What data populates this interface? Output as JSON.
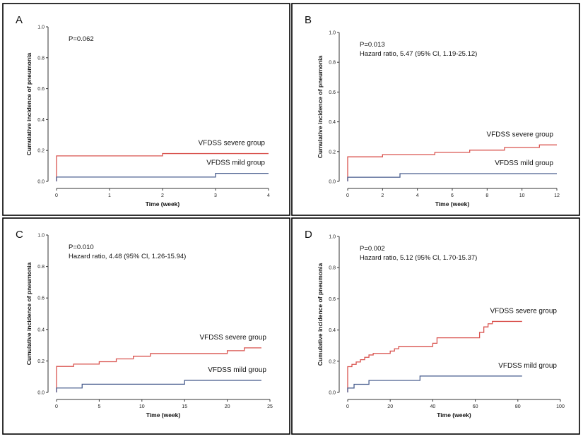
{
  "series_colors": {
    "severe": "#d9534f",
    "mild": "#4a5f8f"
  },
  "chart_data": [
    {
      "type": "line",
      "panel": "A",
      "annotations": [
        "P=0.062"
      ],
      "xlabel": "Time (week)",
      "ylabel": "Cumulative incidence of pneumonia",
      "xlim": [
        0,
        4
      ],
      "ylim": [
        0,
        1.0
      ],
      "xticks": [
        0,
        1,
        2,
        3,
        4
      ],
      "yticks": [
        0.0,
        0.2,
        0.4,
        0.6,
        0.8,
        1.0
      ],
      "step": true,
      "series": [
        {
          "name": "VFDSS severe group",
          "color_key": "severe",
          "x": [
            0,
            0,
            2,
            4
          ],
          "y": [
            0,
            0.165,
            0.18,
            0.18
          ]
        },
        {
          "name": "VFDSS mild group",
          "color_key": "mild",
          "x": [
            0,
            0,
            3,
            4
          ],
          "y": [
            0,
            0.028,
            0.052,
            0.052
          ]
        }
      ]
    },
    {
      "type": "line",
      "panel": "B",
      "annotations": [
        "P=0.013",
        "Hazard ratio, 5.47 (95% CI, 1.19-25.12)"
      ],
      "xlabel": "Time (week)",
      "ylabel": "Cumulative incidence of pneumonia",
      "xlim": [
        0,
        12
      ],
      "ylim": [
        0,
        1.0
      ],
      "xticks": [
        0,
        2,
        4,
        6,
        8,
        10,
        12
      ],
      "yticks": [
        0.0,
        0.2,
        0.4,
        0.6,
        0.8,
        1.0
      ],
      "step": true,
      "series": [
        {
          "name": "VFDSS severe group",
          "color_key": "severe",
          "x": [
            0,
            0,
            2,
            5,
            7,
            9,
            11,
            12
          ],
          "y": [
            0,
            0.165,
            0.18,
            0.195,
            0.21,
            0.228,
            0.245,
            0.245
          ]
        },
        {
          "name": "VFDSS mild group",
          "color_key": "mild",
          "x": [
            0,
            0,
            3,
            12
          ],
          "y": [
            0,
            0.028,
            0.052,
            0.052
          ]
        }
      ]
    },
    {
      "type": "line",
      "panel": "C",
      "annotations": [
        "P=0.010",
        "Hazard ratio, 4.48 (95% CI, 1.26-15.94)"
      ],
      "xlabel": "Time (week)",
      "ylabel": "Cumulative incidence of pneumonia",
      "xlim": [
        0,
        25
      ],
      "ylim": [
        0,
        1.0
      ],
      "xticks": [
        0,
        5,
        10,
        15,
        20,
        25
      ],
      "yticks": [
        0.0,
        0.2,
        0.4,
        0.6,
        0.8,
        1.0
      ],
      "step": true,
      "series": [
        {
          "name": "VFDSS severe group",
          "color_key": "severe",
          "x": [
            0,
            0,
            2,
            5,
            7,
            9,
            11,
            20,
            22,
            24
          ],
          "y": [
            0,
            0.165,
            0.18,
            0.195,
            0.213,
            0.23,
            0.247,
            0.265,
            0.283,
            0.283
          ]
        },
        {
          "name": "VFDSS mild group",
          "color_key": "mild",
          "x": [
            0,
            0,
            3,
            15,
            24
          ],
          "y": [
            0,
            0.028,
            0.052,
            0.077,
            0.077
          ]
        }
      ]
    },
    {
      "type": "line",
      "panel": "D",
      "annotations": [
        "P=0.002",
        "Hazard ratio, 5.12 (95% CI, 1.70-15.37)"
      ],
      "xlabel": "Time (week)",
      "ylabel": "Cumulative incidence of pneumonia",
      "xlim": [
        0,
        100
      ],
      "ylim": [
        0,
        1.0
      ],
      "xticks": [
        0,
        20,
        40,
        60,
        80,
        100
      ],
      "yticks": [
        0.0,
        0.2,
        0.4,
        0.6,
        0.8,
        1.0
      ],
      "step": true,
      "series": [
        {
          "name": "VFDSS severe group",
          "color_key": "severe",
          "x": [
            0,
            0,
            2,
            4,
            6,
            8,
            10,
            12,
            20,
            22,
            24,
            40,
            42,
            62,
            64,
            66,
            68,
            82
          ],
          "y": [
            0,
            0.165,
            0.18,
            0.195,
            0.21,
            0.225,
            0.24,
            0.25,
            0.265,
            0.28,
            0.295,
            0.315,
            0.35,
            0.385,
            0.42,
            0.44,
            0.455,
            0.455
          ]
        },
        {
          "name": "VFDSS mild group",
          "color_key": "mild",
          "x": [
            0,
            0,
            3,
            10,
            34,
            82
          ],
          "y": [
            0,
            0.028,
            0.052,
            0.077,
            0.105,
            0.105
          ]
        }
      ]
    }
  ]
}
